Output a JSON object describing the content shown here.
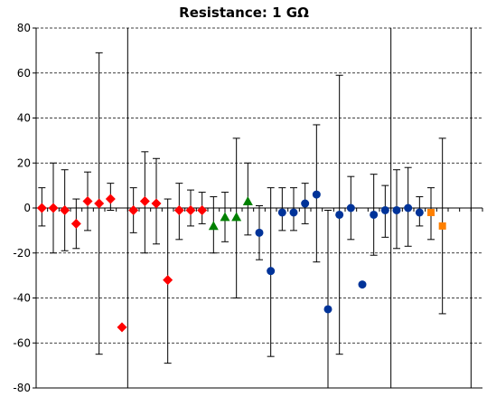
{
  "chart_data": {
    "type": "scatter",
    "title": "Resistance: 1 GΩ",
    "xlabel": "",
    "ylabel": "",
    "ylim": [
      -80,
      80
    ],
    "yticks": [
      -80,
      -60,
      -40,
      -20,
      0,
      20,
      40,
      60,
      80
    ],
    "xlim": [
      0.5,
      39.5
    ],
    "grid": true,
    "group_dividers": [
      8.5,
      31.5,
      38.5
    ],
    "series": [
      {
        "marker": "diamond",
        "color": "#ff0000",
        "points": [
          {
            "x": 1,
            "y": 0,
            "low": -8,
            "high": 9
          },
          {
            "x": 2,
            "y": 0,
            "low": -20,
            "high": 20
          },
          {
            "x": 3,
            "y": -1,
            "low": -19,
            "high": 17
          },
          {
            "x": 4,
            "y": -7,
            "low": -18,
            "high": 4
          },
          {
            "x": 5,
            "y": 3,
            "low": -10,
            "high": 16
          },
          {
            "x": 6,
            "y": 2,
            "low": -65,
            "high": 69
          },
          {
            "x": 7,
            "y": 4,
            "low": -1,
            "high": 11
          },
          {
            "x": 8,
            "y": -53,
            "low": -53,
            "high": -53
          },
          {
            "x": 9,
            "y": -1,
            "low": -11,
            "high": 9
          },
          {
            "x": 10,
            "y": 3,
            "low": -20,
            "high": 25
          },
          {
            "x": 11,
            "y": 2,
            "low": -16,
            "high": 22
          },
          {
            "x": 12,
            "y": -32,
            "low": -69,
            "high": 4
          },
          {
            "x": 13,
            "y": -1,
            "low": -14,
            "high": 11
          },
          {
            "x": 14,
            "y": -1,
            "low": -8,
            "high": 8
          },
          {
            "x": 15,
            "y": -1,
            "low": -7,
            "high": 7
          }
        ]
      },
      {
        "marker": "triangle",
        "color": "#008000",
        "points": [
          {
            "x": 16,
            "y": -8,
            "low": -20,
            "high": 5
          },
          {
            "x": 17,
            "y": -4,
            "low": -15,
            "high": 7
          },
          {
            "x": 18,
            "y": -4,
            "low": -40,
            "high": 31
          },
          {
            "x": 19,
            "y": 3,
            "low": -12,
            "high": 20
          }
        ]
      },
      {
        "marker": "circle",
        "color": "#003399",
        "points": [
          {
            "x": 20,
            "y": -11,
            "low": -23,
            "high": 1
          },
          {
            "x": 21,
            "y": -28,
            "low": -66,
            "high": 9
          },
          {
            "x": 22,
            "y": -2,
            "low": -10,
            "high": 9
          },
          {
            "x": 23,
            "y": -2,
            "low": -10,
            "high": 9
          },
          {
            "x": 24,
            "y": 2,
            "low": -7,
            "high": 11
          },
          {
            "x": 25,
            "y": 6,
            "low": -24,
            "high": 37
          },
          {
            "x": 26,
            "y": -45,
            "low": -80,
            "high": -1
          },
          {
            "x": 27,
            "y": -3,
            "low": -65,
            "high": 59
          },
          {
            "x": 28,
            "y": 0,
            "low": -14,
            "high": 14
          },
          {
            "x": 29,
            "y": -34,
            "low": -34,
            "high": -34
          },
          {
            "x": 30,
            "y": -3,
            "low": -21,
            "high": 15
          },
          {
            "x": 31,
            "y": -1,
            "low": -13,
            "high": 10
          },
          {
            "x": 32,
            "y": -1,
            "low": -18,
            "high": 17
          },
          {
            "x": 33,
            "y": 0,
            "low": -17,
            "high": 18
          },
          {
            "x": 34,
            "y": -2,
            "low": -8,
            "high": 5
          }
        ]
      },
      {
        "marker": "square",
        "color": "#ff8000",
        "points": [
          {
            "x": 35,
            "y": -2,
            "low": -14,
            "high": 9
          },
          {
            "x": 36,
            "y": -8,
            "low": -47,
            "high": 31
          }
        ]
      }
    ]
  }
}
